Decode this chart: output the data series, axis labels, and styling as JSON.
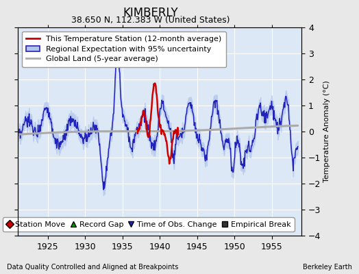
{
  "title": "KIMBERLY",
  "subtitle": "38.650 N, 112.383 W (United States)",
  "ylabel": "Temperature Anomaly (°C)",
  "xlabel_note": "Data Quality Controlled and Aligned at Breakpoints",
  "credit": "Berkeley Earth",
  "xlim": [
    1921,
    1959
  ],
  "ylim": [
    -4,
    4
  ],
  "yticks": [
    -4,
    -3,
    -2,
    -1,
    0,
    1,
    2,
    3,
    4
  ],
  "xticks": [
    1925,
    1930,
    1935,
    1940,
    1945,
    1950,
    1955
  ],
  "background_color": "#e8e8e8",
  "plot_bg_color": "#dce8f5",
  "grid_color": "#ffffff",
  "legend1_labels": [
    "This Temperature Station (12-month average)",
    "Regional Expectation with 95% uncertainty",
    "Global Land (5-year average)"
  ],
  "blue_line_color": "#2222bb",
  "blue_fill_color": "#b0c4ee",
  "red_line_color": "#cc0000",
  "gray_line_color": "#aaaaaa",
  "legend2_items": [
    {
      "label": "Station Move",
      "marker": "D",
      "color": "#cc0000"
    },
    {
      "label": "Record Gap",
      "marker": "^",
      "color": "#009900"
    },
    {
      "label": "Time of Obs. Change",
      "marker": "v",
      "color": "#2222bb"
    },
    {
      "label": "Empirical Break",
      "marker": "s",
      "color": "#333333"
    }
  ],
  "title_fontsize": 12,
  "subtitle_fontsize": 9,
  "axis_fontsize": 8,
  "tick_fontsize": 9,
  "legend_fontsize": 8
}
